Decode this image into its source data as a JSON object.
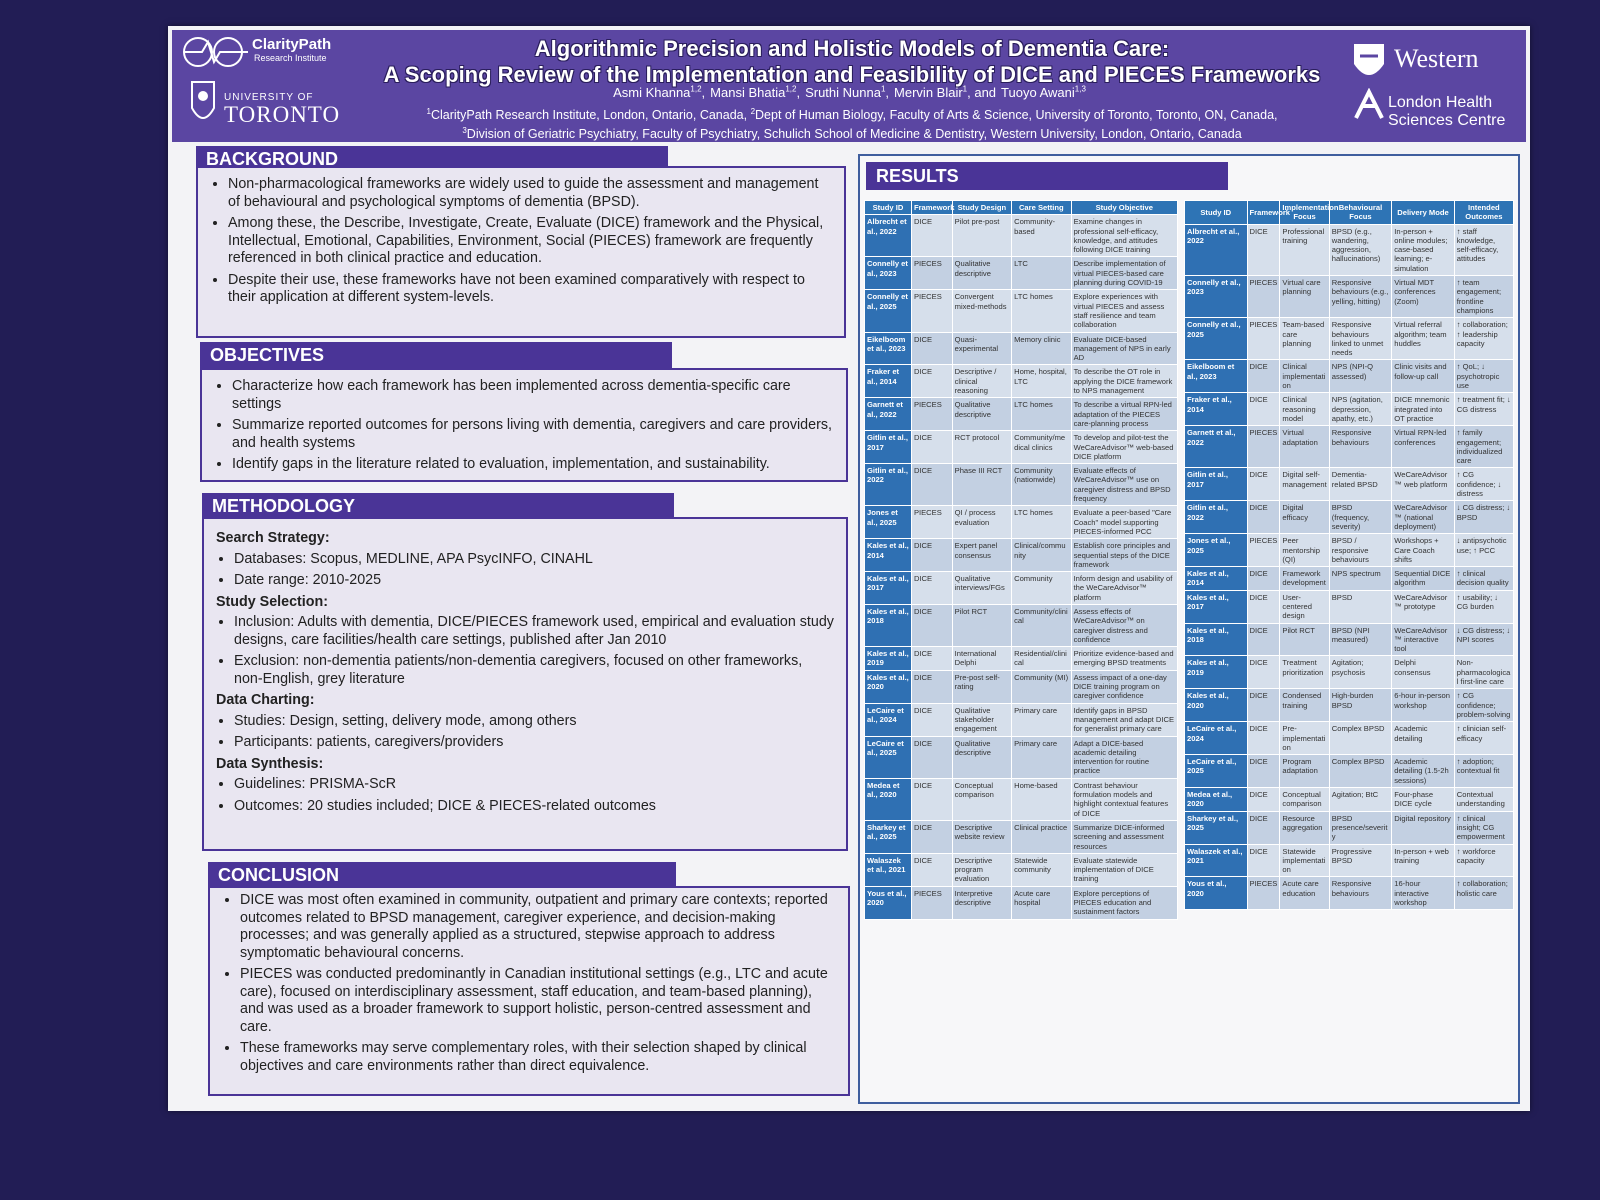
{
  "header": {
    "logo_left_name": "ClarityPath",
    "logo_left_sub": "Research Institute",
    "logo_uoft_top": "UNIVERSITY OF",
    "logo_uoft_name": "TORONTO",
    "title_line1": "Algorithmic Precision and Holistic Models of Dementia Care:",
    "title_line2": "A Scoping Review of the Implementation and Feasibility of DICE and PIECES Frameworks",
    "authors": [
      {
        "name": "Asmi Khanna",
        "sup": "1,2",
        "after": ","
      },
      {
        "name": "Mansi Bhatia",
        "sup": "1,2",
        "after": ","
      },
      {
        "name": "Sruthi Nunna",
        "sup": "1",
        "after": ","
      },
      {
        "name": "Mervin Blair",
        "sup": "1",
        "after": ", and"
      },
      {
        "name": "Tuoyo Awani",
        "sup": "1,3"
      }
    ],
    "affiliations": [
      [
        {
          "sup": "1",
          "text": "ClarityPath Research Institute, London, Ontario, Canada, "
        },
        {
          "sup": "2",
          "text": "Dept of Human Biology, Faculty of Arts & Science, University of Toronto, Toronto, ON, Canada,"
        }
      ],
      [
        {
          "sup": "3",
          "text": "Division of Geriatric Psychiatry, Faculty of Psychiatry, Schulich School of Medicine & Dentistry, Western University, London, Ontario, Canada"
        }
      ]
    ],
    "logo_western": "Western",
    "logo_lhsc_line1": "London Health",
    "logo_lhsc_line2": "Sciences Centre"
  },
  "background": {
    "heading": "BACKGROUND",
    "bullets": [
      "Non-pharmacological frameworks are widely used to guide the assessment and management of behavioural and psychological symptoms of dementia (BPSD).",
      "Among these, the Describe, Investigate, Create, Evaluate (DICE) framework and the Physical, Intellectual, Emotional, Capabilities, Environment, Social (PIECES) framework are frequently referenced in both clinical practice and education.",
      "Despite their use, these frameworks have not been examined comparatively with respect to their application at different system-levels."
    ]
  },
  "objectives": {
    "heading": "OBJECTIVES",
    "bullets": [
      "Characterize how each framework has been implemented across dementia-specific care settings",
      "Summarize reported outcomes for persons living with dementia, caregivers and care providers, and health systems",
      "Identify gaps in the literature related to evaluation, implementation, and sustainability."
    ]
  },
  "methodology": {
    "heading": "METHODOLOGY",
    "groups": [
      {
        "label": "Search Strategy:",
        "bullets": [
          "Databases: Scopus, MEDLINE, APA PsycINFO, CINAHL",
          "Date range: 2010-2025"
        ]
      },
      {
        "label": "Study Selection:",
        "bullets": [
          "Inclusion: Adults with dementia, DICE/PIECES framework used, empirical and evaluation study designs, care facilities/health care settings, published after Jan 2010",
          "Exclusion: non-dementia patients/non-dementia caregivers, focused on other frameworks, non-English, grey literature"
        ]
      },
      {
        "label": "Data Charting:",
        "bullets": [
          "Studies: Design, setting, delivery mode, among others",
          "Participants: patients, caregivers/providers"
        ]
      },
      {
        "label": "Data Synthesis:",
        "bullets": [
          "Guidelines: PRISMA-ScR",
          "Outcomes: 20 studies included; DICE & PIECES-related outcomes"
        ]
      }
    ]
  },
  "conclusion": {
    "heading": "CONCLUSION",
    "bullets": [
      "DICE was most often examined in community, outpatient and primary care contexts; reported outcomes related to BPSD management, caregiver experience, and decision-making processes; and was generally applied as a structured, stepwise approach to address symptomatic behavioural concerns.",
      "PIECES was conducted predominantly in Canadian institutional settings (e.g., LTC and acute care), focused on interdisciplinary assessment, staff education, and team-based planning), and was used as a broader framework to support holistic, person-centred assessment and care.",
      "These frameworks may serve complementary roles, with their selection shaped by clinical objectives and care environments rather than direct equivalence."
    ]
  },
  "results": {
    "heading": "RESULTS",
    "table1": {
      "columns": [
        "Study ID",
        "Framework",
        "Study Design",
        "Care Setting",
        "Study Objective"
      ],
      "rows": [
        [
          "Albrecht et al., 2022",
          "DICE",
          "Pilot pre-post",
          "Community-based",
          "Examine changes in professional self-efficacy, knowledge, and attitudes following DICE training"
        ],
        [
          "Connelly et al., 2023",
          "PIECES",
          "Qualitative descriptive",
          "LTC",
          "Describe implementation of virtual PIECES-based care planning during COVID-19"
        ],
        [
          "Connelly et al., 2025",
          "PIECES",
          "Convergent mixed-methods",
          "LTC homes",
          "Explore experiences with virtual PIECES and assess staff resilience and team collaboration"
        ],
        [
          "Eikelboom et al., 2023",
          "DICE",
          "Quasi-experimental",
          "Memory clinic",
          "Evaluate DICE-based management of NPS in early AD"
        ],
        [
          "Fraker et al., 2014",
          "DICE",
          "Descriptive / clinical reasoning",
          "Home, hospital, LTC",
          "To describe the OT role in applying the DICE framework to NPS management"
        ],
        [
          "Garnett et al., 2022",
          "PIECES",
          "Qualitative descriptive",
          "LTC homes",
          "To describe a virtual RPN-led adaptation of the PIECES care-planning process"
        ],
        [
          "Gitlin et al., 2017",
          "DICE",
          "RCT protocol",
          "Community/medical clinics",
          "To develop and pilot-test the WeCareAdvisor™ web-based DICE platform"
        ],
        [
          "Gitlin et al., 2022",
          "DICE",
          "Phase III RCT",
          "Community (nationwide)",
          "Evaluate effects of WeCareAdvisor™ use on caregiver distress and BPSD frequency"
        ],
        [
          "Jones et al., 2025",
          "PIECES",
          "QI / process evaluation",
          "LTC homes",
          "Evaluate a peer-based \"Care Coach\" model supporting PIECES-informed PCC"
        ],
        [
          "Kales et al., 2014",
          "DICE",
          "Expert panel consensus",
          "Clinical/community",
          "Establish core principles and sequential steps of the DICE framework"
        ],
        [
          "Kales et al., 2017",
          "DICE",
          "Qualitative interviews/FGs",
          "Community",
          "Inform design and usability of the WeCareAdvisor™ platform"
        ],
        [
          "Kales et al., 2018",
          "DICE",
          "Pilot RCT",
          "Community/clinical",
          "Assess effects of WeCareAdvisor™ on caregiver distress and confidence"
        ],
        [
          "Kales et al., 2019",
          "DICE",
          "International Delphi",
          "Residential/clinical",
          "Prioritize evidence-based and emerging BPSD treatments"
        ],
        [
          "Kales et al., 2020",
          "DICE",
          "Pre-post self-rating",
          "Community (MI)",
          "Assess impact of a one-day DICE training program on caregiver confidence"
        ],
        [
          "LeCaire et al., 2024",
          "DICE",
          "Qualitative stakeholder engagement",
          "Primary care",
          "Identify gaps in BPSD management and adapt DICE for generalist primary care"
        ],
        [
          "LeCaire et al., 2025",
          "DICE",
          "Qualitative descriptive",
          "Primary care",
          "Adapt a DICE-based academic detailing intervention for routine practice"
        ],
        [
          "Medea et al., 2020",
          "DICE",
          "Conceptual comparison",
          "Home-based",
          "Contrast behaviour formulation models and highlight contextual features of DICE"
        ],
        [
          "Sharkey et al., 2025",
          "DICE",
          "Descriptive website review",
          "Clinical practice",
          "Summarize DICE-informed screening and assessment resources"
        ],
        [
          "Walaszek et al., 2021",
          "DICE",
          "Descriptive program evaluation",
          "Statewide community",
          "Evaluate statewide implementation of DICE training"
        ],
        [
          "Yous et al., 2020",
          "PIECES",
          "Interpretive descriptive",
          "Acute care hospital",
          "Explore perceptions of PIECES education and sustainment factors"
        ]
      ]
    },
    "table2": {
      "columns": [
        "Study ID",
        "Framework",
        "Implementation Focus",
        "Behavioural Focus",
        "Delivery Mode",
        "Intended Outcomes"
      ],
      "rows": [
        [
          "Albrecht et al., 2022",
          "DICE",
          "Professional training",
          "BPSD (e.g., wandering, aggression, hallucinations)",
          "In-person + online modules; case-based learning; e-simulation",
          "↑ staff knowledge, self-efficacy, attitudes"
        ],
        [
          "Connelly et al., 2023",
          "PIECES",
          "Virtual care planning",
          "Responsive behaviours (e.g., yelling, hitting)",
          "Virtual MDT conferences (Zoom)",
          "↑ team engagement; frontline champions"
        ],
        [
          "Connelly et al., 2025",
          "PIECES",
          "Team-based care planning",
          "Responsive behaviours linked to unmet needs",
          "Virtual referral algorithm; team huddles",
          "↑ collaboration; ↑ leadership capacity"
        ],
        [
          "Eikelboom et al., 2023",
          "DICE",
          "Clinical implementation",
          "NPS (NPI-Q assessed)",
          "Clinic visits and follow-up call",
          "↑ QoL; ↓ psychotropic use"
        ],
        [
          "Fraker et al., 2014",
          "DICE",
          "Clinical reasoning model",
          "NPS (agitation, depression, apathy, etc.)",
          "DICE mnemonic integrated into OT practice",
          "↑ treatment fit; ↓ CG distress"
        ],
        [
          "Garnett et al., 2022",
          "PIECES",
          "Virtual adaptation",
          "Responsive behaviours",
          "Virtual RPN-led conferences",
          "↑ family engagement; individualized care"
        ],
        [
          "Gitlin et al., 2017",
          "DICE",
          "Digital self-management",
          "Dementia-related BPSD",
          "WeCareAdvisor™ web platform",
          "↑ CG confidence; ↓ distress"
        ],
        [
          "Gitlin et al., 2022",
          "DICE",
          "Digital efficacy",
          "BPSD (frequency, severity)",
          "WeCareAdvisor™ (national deployment)",
          "↓ CG distress; ↓ BPSD"
        ],
        [
          "Jones et al., 2025",
          "PIECES",
          "Peer mentorship (QI)",
          "BPSD / responsive behaviours",
          "Workshops + Care Coach shifts",
          "↓ antipsychotic use; ↑ PCC"
        ],
        [
          "Kales et al., 2014",
          "DICE",
          "Framework development",
          "NPS spectrum",
          "Sequential DICE algorithm",
          "↑ clinical decision quality"
        ],
        [
          "Kales et al., 2017",
          "DICE",
          "User-centered design",
          "BPSD",
          "WeCareAdvisor™ prototype",
          "↑ usability; ↓ CG burden"
        ],
        [
          "Kales et al., 2018",
          "DICE",
          "Pilot RCT",
          "BPSD (NPI measured)",
          "WeCareAdvisor™ interactive tool",
          "↓ CG distress; ↓ NPI scores"
        ],
        [
          "Kales et al., 2019",
          "DICE",
          "Treatment prioritization",
          "Agitation; psychosis",
          "Delphi consensus",
          "Non-pharmacological first-line care"
        ],
        [
          "Kales et al., 2020",
          "DICE",
          "Condensed training",
          "High-burden BPSD",
          "6-hour in-person workshop",
          "↑ CG confidence; problem-solving"
        ],
        [
          "LeCaire et al., 2024",
          "DICE",
          "Pre-implementation",
          "Complex BPSD",
          "Academic detailing",
          "↑ clinician self-efficacy"
        ],
        [
          "LeCaire et al., 2025",
          "DICE",
          "Program adaptation",
          "Complex BPSD",
          "Academic detailing (1.5-2h sessions)",
          "↑ adoption; contextual fit"
        ],
        [
          "Medea et al., 2020",
          "DICE",
          "Conceptual comparison",
          "Agitation; BtC",
          "Four-phase DICE cycle",
          "Contextual understanding"
        ],
        [
          "Sharkey et al., 2025",
          "DICE",
          "Resource aggregation",
          "BPSD presence/severity",
          "Digital repository",
          "↑ clinical insight; CG empowerment"
        ],
        [
          "Walaszek et al., 2021",
          "DICE",
          "Statewide implementation",
          "Progressive BPSD",
          "In-person + web training",
          "↑ workforce capacity"
        ],
        [
          "Yous et al., 2020",
          "PIECES",
          "Acute care education",
          "Responsive behaviours",
          "16-hour interactive workshop",
          "↑ collaboration; holistic care"
        ]
      ]
    }
  }
}
